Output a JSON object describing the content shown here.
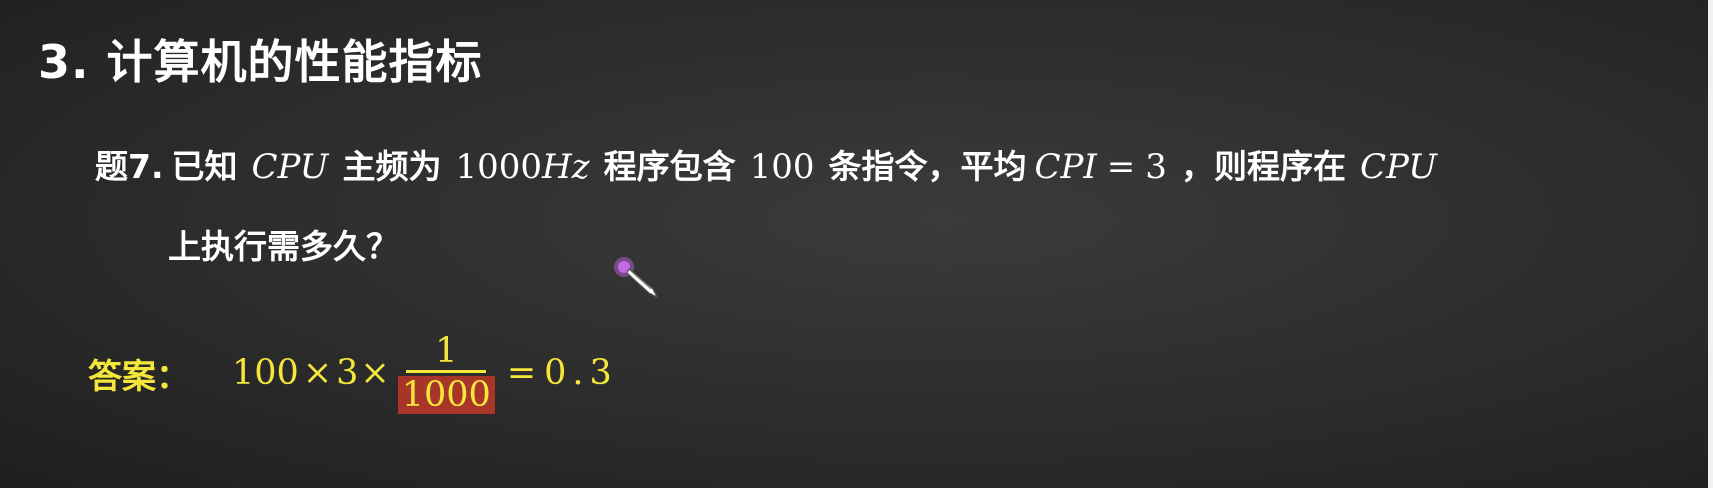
{
  "heading": "3. 计算机的性能指标",
  "question": {
    "label": "题7.",
    "t1": "已知",
    "cpu": "CPU",
    "t2": "主频为",
    "freq_num": "1000",
    "freq_unit": "Hz",
    "t3": "程序包含",
    "count": "100",
    "t4": "条指令，平均",
    "cpi_label": "CPI",
    "equals": "=",
    "cpi_value": "3",
    "t5": "，则程序在",
    "cpu2": "CPU",
    "line2": "上执行需多久？"
  },
  "answer": {
    "label": "答案：",
    "n1": "100",
    "times": "×",
    "n2": "3",
    "frac_num": "1",
    "frac_den": "1000",
    "equals": "=",
    "result": "0.3"
  },
  "colors": {
    "answer": "#f5e63c",
    "highlight": "#a73528",
    "pen": "#b45bd6"
  }
}
